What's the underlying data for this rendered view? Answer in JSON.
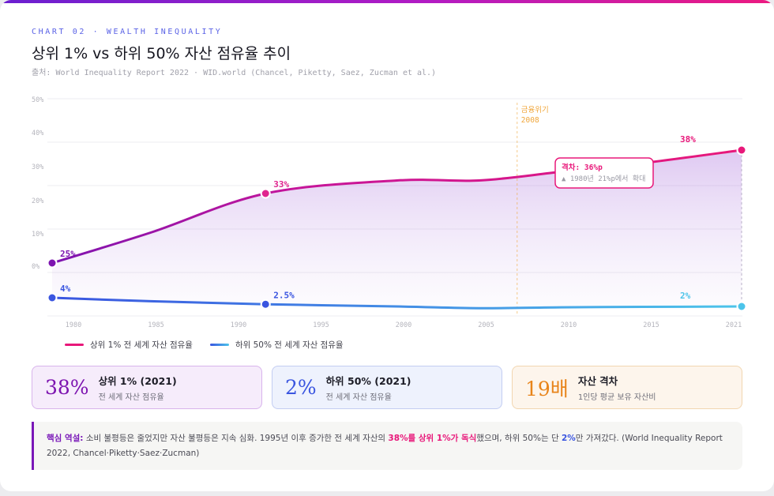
{
  "header": {
    "eyebrow": "CHART 02 · WEALTH INEQUALITY",
    "title": "상위 1% vs 하위 50% 자산 점유율 추이",
    "source": "출처: World Inequality Report 2022 · WID.world (Chancel, Piketty, Saez, Zucman et al.)"
  },
  "colors": {
    "top": "#e8187a",
    "top_start": "#7d14b0",
    "bottom": "#3b5de0",
    "bottom_end": "#4cc4ea",
    "event": "#f0a63a"
  },
  "chart_data": {
    "type": "line",
    "x_ticks": [
      "1980",
      "1985",
      "1990",
      "1995",
      "2000",
      "2005",
      "2010",
      "2015",
      "2021"
    ],
    "y_ticks": [
      "50%",
      "40%",
      "30%",
      "20%",
      "10%",
      "0%"
    ],
    "series": [
      {
        "name": "상위 1% 전 세계 자산 점유율",
        "x": [
          1979,
          1985,
          1992,
          2000,
          2005,
          2010,
          2015,
          2021
        ],
        "values": [
          25,
          28.5,
          33,
          34.5,
          34.5,
          35.5,
          36.5,
          38
        ]
      },
      {
        "name": "하위 50% 전 세계 자산 점유율",
        "x": [
          1979,
          1985,
          1992,
          2000,
          2005,
          2010,
          2015,
          2021
        ],
        "values": [
          4,
          3.2,
          2.5,
          2.0,
          1.6,
          1.8,
          1.9,
          2
        ]
      }
    ],
    "point_labels": [
      {
        "series": 0,
        "x": 1979,
        "text": "25%"
      },
      {
        "series": 0,
        "x": 1992,
        "text": "33%"
      },
      {
        "series": 0,
        "x": 2021,
        "text": "38%"
      },
      {
        "series": 1,
        "x": 1979,
        "text": "4%"
      },
      {
        "series": 1,
        "x": 1992,
        "text": "2.5%"
      },
      {
        "series": 1,
        "x": 2021,
        "text": "2%"
      }
    ],
    "event": {
      "x": 2008,
      "label1": "금융위기",
      "label2": "2008"
    },
    "annotation": {
      "title": "격차: 36%p",
      "sub": "▲ 1980년 21%p에서 확대"
    }
  },
  "stats": [
    {
      "value": "38%",
      "label": "상위 1% (2021)",
      "sub": "전 세계 자산 점유율"
    },
    {
      "value": "2%",
      "label": "하위 50% (2021)",
      "sub": "전 세계 자산 점유율"
    },
    {
      "value": "19배",
      "label": "자산 격차",
      "sub": "1인당 평균 보유 자산비"
    }
  ],
  "note": {
    "lead": "핵심 역설:",
    "t1": " 소비 불평등은 줄었지만 자산 불평등은 지속 심화. 1995년 이후 증가한 전 세계 자산의 ",
    "pink": "38%를 상위 1%가 독식",
    "t2": "했으며, 하위 50%는 단 ",
    "blue": "2%",
    "t3": "만 가져갔다. (World Inequality Report 2022, Chancel·Piketty·Saez·Zucman)"
  }
}
